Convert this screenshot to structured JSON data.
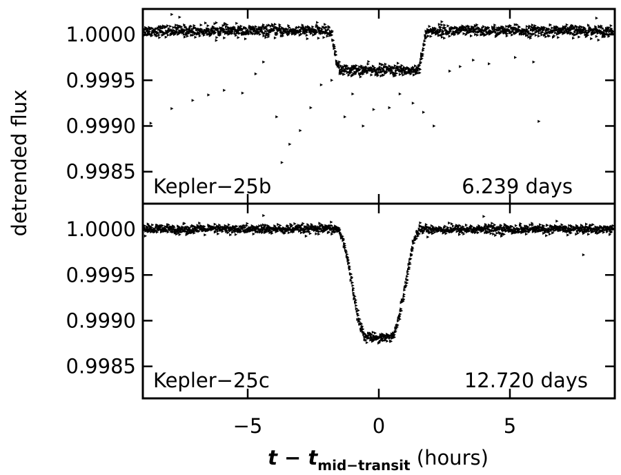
{
  "chart_data": {
    "type": "scatter",
    "ylabel": "detrended flux",
    "xlabel": {
      "main": "t − t",
      "subscript": "mid−transit",
      "unit": "(hours)"
    },
    "xlim": [
      -9,
      9
    ],
    "xticks": [
      {
        "value": -5,
        "label": "−5"
      },
      {
        "value": 0,
        "label": "0"
      },
      {
        "value": 5,
        "label": "5"
      }
    ],
    "panels": [
      {
        "name": "Kepler−25b",
        "period_label": "6.239 days",
        "ylim": [
          0.99815,
          1.00028
        ],
        "yticks": [
          {
            "value": 1.0,
            "label": "1.0000"
          },
          {
            "value": 0.9995,
            "label": "0.9995"
          },
          {
            "value": 0.999,
            "label": "0.9990"
          },
          {
            "value": 0.9985,
            "label": "0.9985"
          }
        ],
        "transit": {
          "ingress_start": -1.9,
          "ingress_end": -1.45,
          "egress_start": 1.45,
          "egress_end": 1.9,
          "baseline": 1.00004,
          "depth": 0.00043
        },
        "scatter_sd": 3e-05,
        "outliers": [
          {
            "x": -7.9,
            "y": 1.00022
          },
          {
            "x": -7.6,
            "y": 1.00019
          },
          {
            "x": -8.7,
            "y": 0.99903
          },
          {
            "x": -7.9,
            "y": 0.99919
          },
          {
            "x": -7.1,
            "y": 0.99928
          },
          {
            "x": -6.5,
            "y": 0.99934
          },
          {
            "x": -5.9,
            "y": 0.99939
          },
          {
            "x": -5.2,
            "y": 0.99936
          },
          {
            "x": -4.7,
            "y": 0.99957
          },
          {
            "x": -4.4,
            "y": 0.9997
          },
          {
            "x": -3.9,
            "y": 0.9991
          },
          {
            "x": -3.7,
            "y": 0.9986
          },
          {
            "x": -3.4,
            "y": 0.9988
          },
          {
            "x": -3.0,
            "y": 0.99895
          },
          {
            "x": -2.6,
            "y": 0.9992
          },
          {
            "x": -2.2,
            "y": 0.99945
          },
          {
            "x": -1.8,
            "y": 0.9995
          },
          {
            "x": -1.3,
            "y": 0.9991
          },
          {
            "x": -1.0,
            "y": 0.99935
          },
          {
            "x": -0.6,
            "y": 0.999
          },
          {
            "x": -0.2,
            "y": 0.99918
          },
          {
            "x": 0.4,
            "y": 0.9992
          },
          {
            "x": 0.8,
            "y": 0.99935
          },
          {
            "x": 1.3,
            "y": 0.99925
          },
          {
            "x": 1.7,
            "y": 0.99915
          },
          {
            "x": 2.1,
            "y": 0.999
          },
          {
            "x": 2.7,
            "y": 0.9996
          },
          {
            "x": 3.1,
            "y": 0.99965
          },
          {
            "x": 3.6,
            "y": 0.99972
          },
          {
            "x": 4.2,
            "y": 0.99968
          },
          {
            "x": 5.2,
            "y": 0.99975
          },
          {
            "x": 5.9,
            "y": 0.9997
          },
          {
            "x": 6.1,
            "y": 0.99905
          },
          {
            "x": 8.3,
            "y": 1.00018
          },
          {
            "x": 2.4,
            "y": 1.00014
          },
          {
            "x": -6.2,
            "y": 1.00013
          }
        ]
      },
      {
        "name": "Kepler−25c",
        "period_label": "12.720 days",
        "ylim": [
          0.99815,
          1.00028
        ],
        "yticks": [
          {
            "value": 1.0,
            "label": "1.0000"
          },
          {
            "value": 0.9995,
            "label": "0.9995"
          },
          {
            "value": 0.999,
            "label": "0.9990"
          },
          {
            "value": 0.9985,
            "label": "0.9985"
          }
        ],
        "transit": {
          "ingress_start": -1.6,
          "ingress_end": -0.45,
          "egress_start": 0.45,
          "egress_end": 1.6,
          "baseline": 1.0,
          "depth": 0.00118
        },
        "scatter_sd": 2.5e-05,
        "outliers": [
          {
            "x": 7.8,
            "y": 0.99972
          },
          {
            "x": -4.4,
            "y": 1.00015
          },
          {
            "x": 4.0,
            "y": 1.00014
          }
        ]
      }
    ]
  }
}
